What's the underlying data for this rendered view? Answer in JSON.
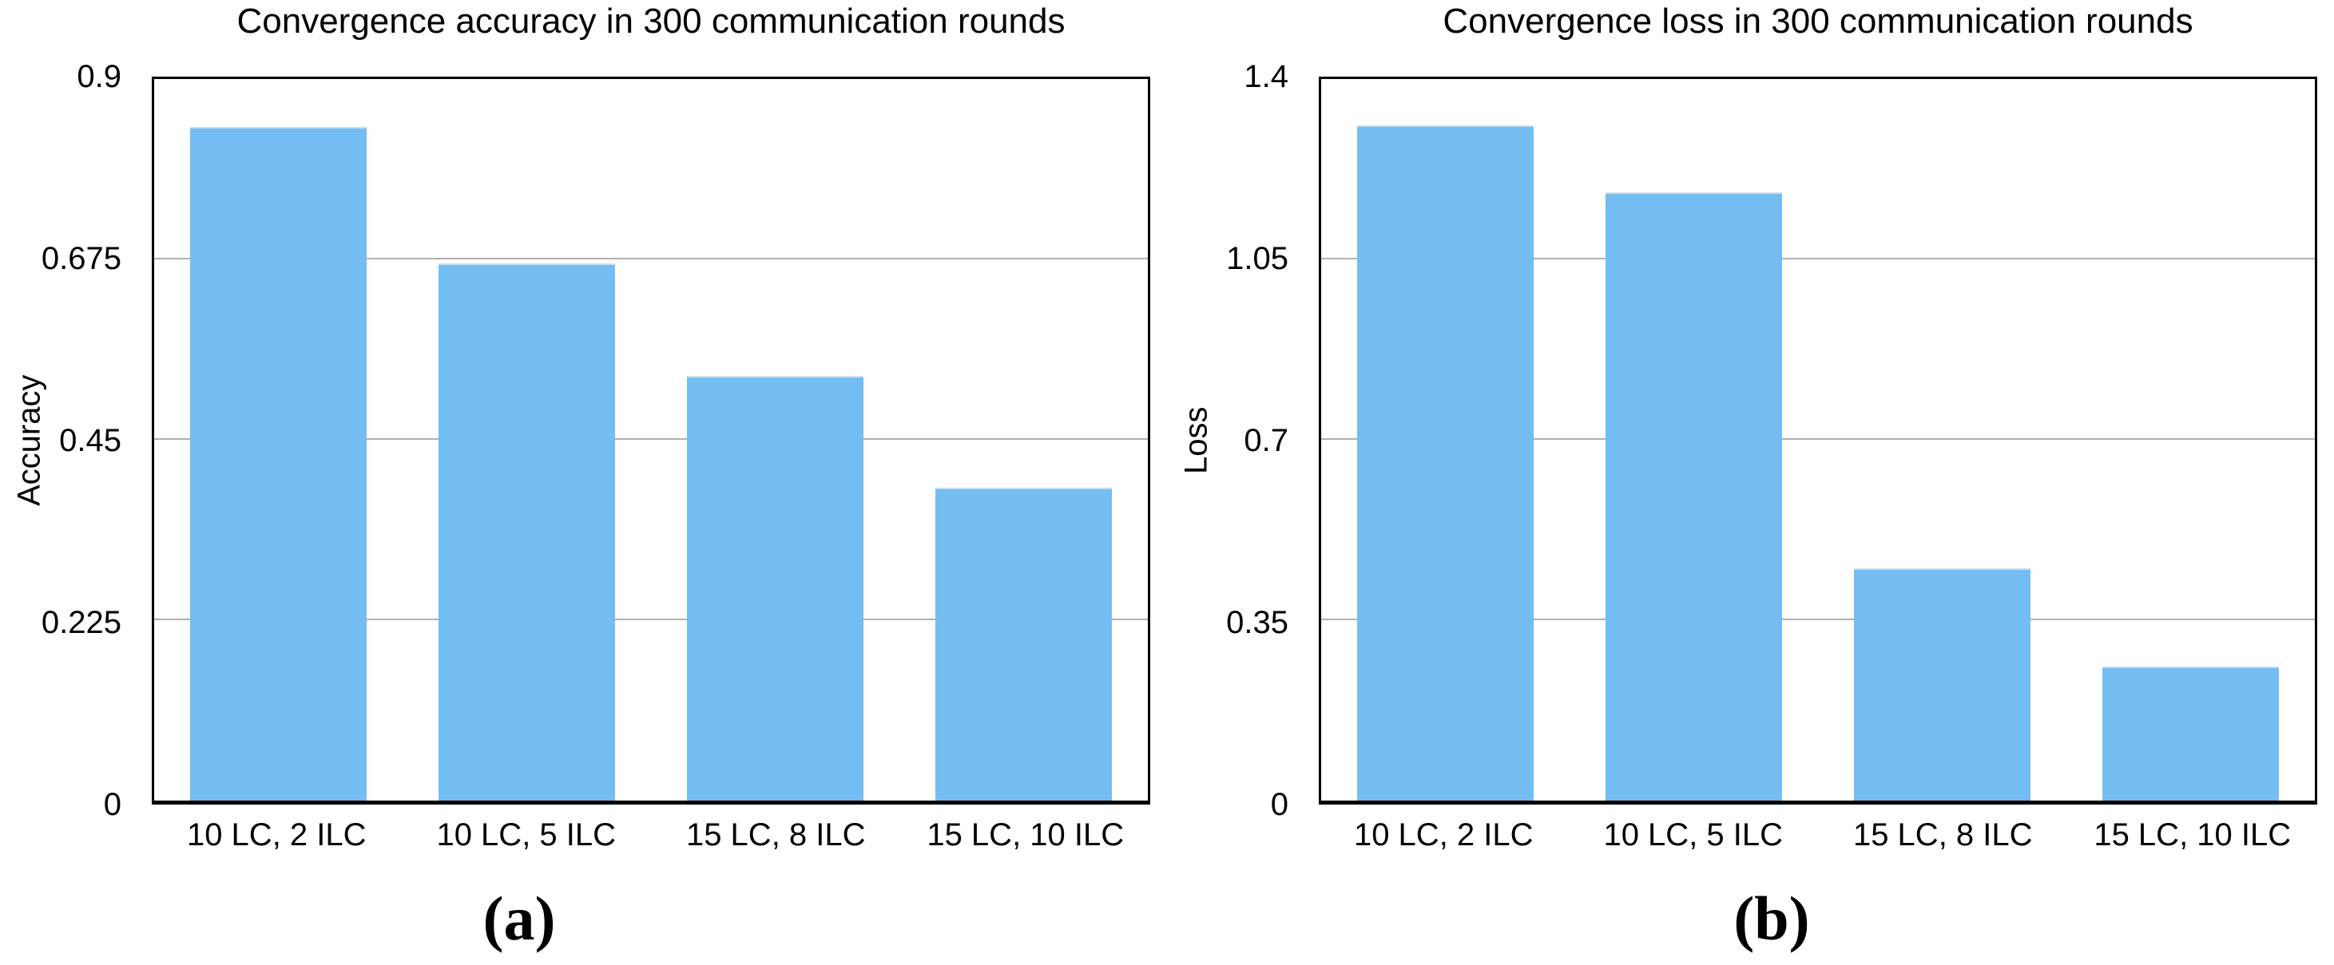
{
  "figure": {
    "background_color": "#ffffff",
    "text_color": "#000000"
  },
  "chart_data": [
    {
      "type": "bar",
      "title": "Convergence accuracy in 300 communication rounds",
      "ylabel": "Accuracy",
      "xlabel": "",
      "caption": "(a)",
      "categories": [
        "10 LC, 2 ILC",
        "10 LC, 5 ILC",
        "15 LC, 8 ILC",
        "15 LC, 10 ILC"
      ],
      "values": [
        0.84,
        0.67,
        0.53,
        0.39
      ],
      "ylim": [
        0,
        0.9
      ],
      "yticks": [
        {
          "value": 0,
          "label": "0"
        },
        {
          "value": 0.225,
          "label": "0.225"
        },
        {
          "value": 0.45,
          "label": "0.45"
        },
        {
          "value": 0.675,
          "label": "0.675"
        },
        {
          "value": 0.9,
          "label": "0.9"
        }
      ],
      "grid": true,
      "legend": false,
      "bar_color": "#74bdf2",
      "grid_color": "#b0b0b0",
      "frame_color": "#000000"
    },
    {
      "type": "bar",
      "title": "Convergence loss in 300 communication rounds",
      "ylabel": "Loss",
      "xlabel": "",
      "caption": "(b)",
      "categories": [
        "10 LC, 2 ILC",
        "10 LC, 5 ILC",
        "15 LC, 8 ILC",
        "15 LC, 10 ILC"
      ],
      "values": [
        1.31,
        1.18,
        0.45,
        0.26
      ],
      "ylim": [
        0,
        1.4
      ],
      "yticks": [
        {
          "value": 0,
          "label": "0"
        },
        {
          "value": 0.35,
          "label": "0.35"
        },
        {
          "value": 0.7,
          "label": "0.7"
        },
        {
          "value": 1.05,
          "label": "1.05"
        },
        {
          "value": 1.4,
          "label": "1.4"
        }
      ],
      "grid": true,
      "legend": false,
      "bar_color": "#74bdf2",
      "grid_color": "#b0b0b0",
      "frame_color": "#000000"
    }
  ]
}
